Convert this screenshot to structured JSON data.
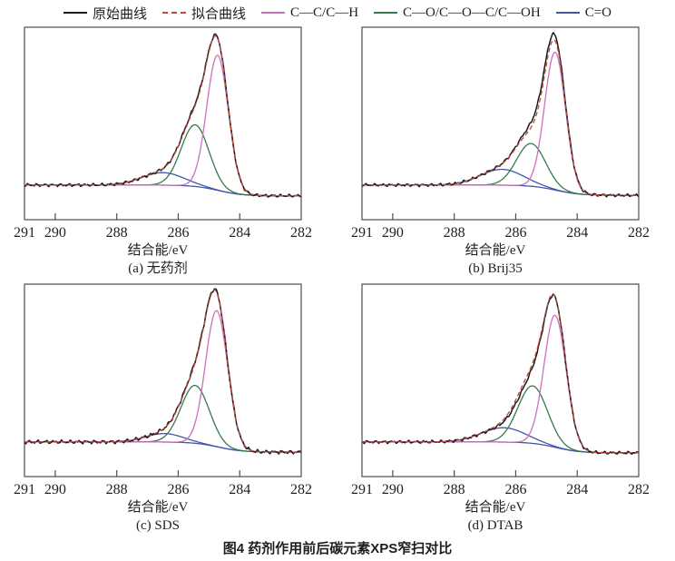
{
  "caption": "图4 药剂作用前后碳元素XPS窄扫对比",
  "axis": {
    "label": "结合能/eV",
    "max": 291,
    "min": 282,
    "direction": "decreasing-to-right",
    "ticks": [
      291,
      290,
      288,
      286,
      284,
      282
    ]
  },
  "colors": {
    "raw": "#1b1b1b",
    "fit": "#c0483e",
    "cc_ch": "#c96fbe",
    "co": "#357a4d",
    "c_double_o": "#4456aa",
    "box": "#4d4d4d",
    "text": "#1f1f1f"
  },
  "legend": [
    {
      "label": "原始曲线",
      "color": "#1b1b1b",
      "style": "solid"
    },
    {
      "label": "拟合曲线",
      "color": "#c0483e",
      "style": "dashed"
    },
    {
      "label": "C—C/C—H",
      "color": "#c96fbe",
      "style": "solid"
    },
    {
      "label": "C—O/C—O—C/C—OH",
      "color": "#357a4d",
      "style": "solid"
    },
    {
      "label": "C=O",
      "color": "#4456aa",
      "style": "solid"
    }
  ],
  "chart_data": [
    {
      "type": "line",
      "panel": "a",
      "subtitle": "(a) 无药剂",
      "xlabel": "结合能/eV",
      "x_range": [
        291,
        282
      ],
      "baseline_frac": 0.82,
      "peak_frac": 0.775,
      "noise_amp": 0.005,
      "noise_seed": 1,
      "background": {
        "drop": 0.065,
        "center": 284.7,
        "width": 0.4
      },
      "raw_extra": {
        "amplitude": 0.012,
        "center": 285.4,
        "sigma": 0.5
      },
      "series": [
        {
          "name": "原始曲线",
          "role": "raw",
          "color": "#1b1b1b"
        },
        {
          "name": "拟合曲线",
          "role": "fit",
          "color": "#c0483e"
        },
        {
          "name": "C—C/C—H",
          "color": "#c96fbe",
          "center": 284.72,
          "sigma": 0.35,
          "amplitude": 0.81
        },
        {
          "name": "C—O/C—O—C/C—OH",
          "color": "#357a4d",
          "center": 285.45,
          "sigma": 0.45,
          "amplitude": 0.37
        },
        {
          "name": "C=O",
          "color": "#4456aa",
          "center": 286.5,
          "sigma": 0.68,
          "amplitude": 0.075
        }
      ]
    },
    {
      "type": "line",
      "panel": "b",
      "subtitle": "(b) Brij35",
      "xlabel": "结合能/eV",
      "x_range": [
        291,
        282
      ],
      "baseline_frac": 0.82,
      "peak_frac": 0.755,
      "noise_amp": 0.005,
      "noise_seed": 2,
      "background": {
        "drop": 0.065,
        "center": 284.7,
        "width": 0.4
      },
      "raw_extra": {
        "amplitude": 0.045,
        "center": 285.1,
        "sigma": 0.5
      },
      "series": [
        {
          "name": "原始曲线",
          "role": "raw",
          "color": "#1b1b1b"
        },
        {
          "name": "拟合曲线",
          "role": "fit",
          "color": "#c0483e"
        },
        {
          "name": "C—C/C—H",
          "color": "#c96fbe",
          "center": 284.72,
          "sigma": 0.34,
          "amplitude": 0.87
        },
        {
          "name": "C—O/C—O—C/C—OH",
          "color": "#357a4d",
          "center": 285.5,
          "sigma": 0.47,
          "amplitude": 0.27
        },
        {
          "name": "C=O",
          "color": "#4456aa",
          "center": 286.45,
          "sigma": 0.7,
          "amplitude": 0.1
        }
      ]
    },
    {
      "type": "line",
      "panel": "c",
      "subtitle": "(c) SDS",
      "xlabel": "结合能/eV",
      "x_range": [
        291,
        282
      ],
      "baseline_frac": 0.82,
      "peak_frac": 0.79,
      "noise_amp": 0.006,
      "noise_seed": 3,
      "background": {
        "drop": 0.06,
        "center": 284.7,
        "width": 0.4
      },
      "raw_extra": {
        "amplitude": 0.01,
        "center": 285.4,
        "sigma": 0.5
      },
      "series": [
        {
          "name": "原始曲线",
          "role": "raw",
          "color": "#1b1b1b"
        },
        {
          "name": "拟合曲线",
          "role": "fit",
          "color": "#c0483e"
        },
        {
          "name": "C—C/C—H",
          "color": "#c96fbe",
          "center": 284.75,
          "sigma": 0.36,
          "amplitude": 0.8
        },
        {
          "name": "C—O/C—O—C/C—OH",
          "color": "#357a4d",
          "center": 285.45,
          "sigma": 0.46,
          "amplitude": 0.34
        },
        {
          "name": "C=O",
          "color": "#4456aa",
          "center": 286.45,
          "sigma": 0.6,
          "amplitude": 0.05
        }
      ]
    },
    {
      "type": "line",
      "panel": "d",
      "subtitle": "(d) DTAB",
      "xlabel": "结合能/eV",
      "x_range": [
        291,
        282
      ],
      "baseline_frac": 0.82,
      "peak_frac": 0.77,
      "noise_amp": 0.005,
      "noise_seed": 4,
      "background": {
        "drop": 0.065,
        "center": 284.7,
        "width": 0.4
      },
      "raw_extra": {
        "amplitude": -0.025,
        "center": 285.7,
        "sigma": 0.6
      },
      "series": [
        {
          "name": "原始曲线",
          "role": "raw",
          "color": "#1b1b1b"
        },
        {
          "name": "拟合曲线",
          "role": "fit",
          "color": "#c0483e"
        },
        {
          "name": "C—C/C—H",
          "color": "#c96fbe",
          "center": 284.72,
          "sigma": 0.36,
          "amplitude": 0.78
        },
        {
          "name": "C—O/C—O—C/C—OH",
          "color": "#357a4d",
          "center": 285.45,
          "sigma": 0.48,
          "amplitude": 0.34
        },
        {
          "name": "C=O",
          "color": "#4456aa",
          "center": 286.4,
          "sigma": 0.72,
          "amplitude": 0.085
        }
      ]
    }
  ]
}
